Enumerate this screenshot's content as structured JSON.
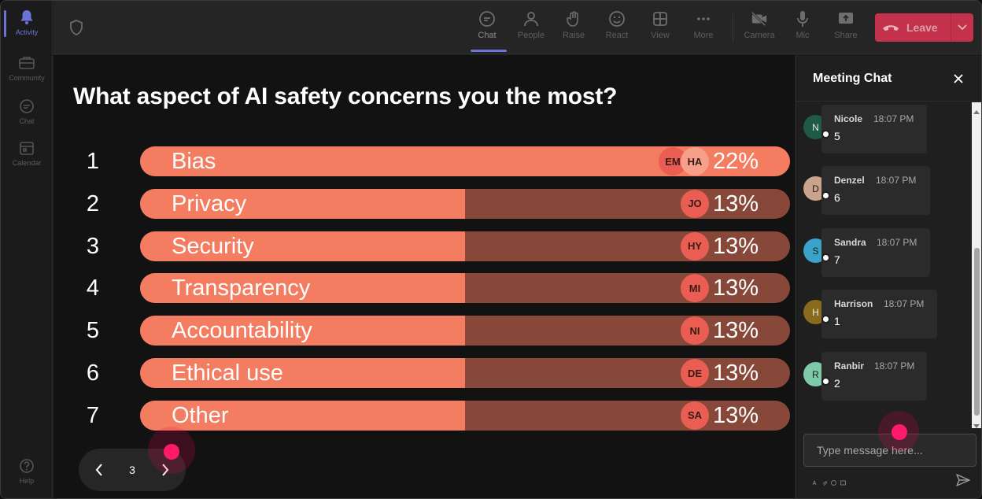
{
  "rail": {
    "items": [
      {
        "label": "Activity",
        "icon": "bell-icon",
        "active": true
      },
      {
        "label": "Community",
        "icon": "community-icon"
      },
      {
        "label": "Chat",
        "icon": "chat-icon"
      },
      {
        "label": "Calendar",
        "icon": "calendar-icon"
      }
    ],
    "help": {
      "label": "Help",
      "icon": "help-icon"
    }
  },
  "toolbar": {
    "buttons": [
      {
        "label": "Chat",
        "icon": "chat-icon",
        "active": true
      },
      {
        "label": "People",
        "icon": "people-icon"
      },
      {
        "label": "Raise",
        "icon": "hand-icon"
      },
      {
        "label": "React",
        "icon": "smiley-icon"
      },
      {
        "label": "View",
        "icon": "grid-icon"
      },
      {
        "label": "More",
        "icon": "more-icon"
      },
      {
        "label": "Camera",
        "icon": "camera-off-icon"
      },
      {
        "label": "Mic",
        "icon": "mic-icon"
      },
      {
        "label": "Share",
        "icon": "share-icon"
      }
    ],
    "leave_label": "Leave"
  },
  "poll": {
    "question": "What aspect of AI safety concerns you the most?",
    "options": [
      {
        "num": "1",
        "label": "Bias",
        "percent": "22%",
        "fill": 1.0,
        "avatars": [
          "EM",
          "HA"
        ]
      },
      {
        "num": "2",
        "label": "Privacy",
        "percent": "13%",
        "fill": 0.5,
        "avatars": [
          "JO"
        ]
      },
      {
        "num": "3",
        "label": "Security",
        "percent": "13%",
        "fill": 0.5,
        "avatars": [
          "HY"
        ]
      },
      {
        "num": "4",
        "label": "Transparency",
        "percent": "13%",
        "fill": 0.5,
        "avatars": [
          "MI"
        ]
      },
      {
        "num": "5",
        "label": "Accountability",
        "percent": "13%",
        "fill": 0.5,
        "avatars": [
          "NI"
        ]
      },
      {
        "num": "6",
        "label": "Ethical use",
        "percent": "13%",
        "fill": 0.5,
        "avatars": [
          "DE"
        ]
      },
      {
        "num": "7",
        "label": "Other",
        "percent": "13%",
        "fill": 0.5,
        "avatars": [
          "SA"
        ]
      }
    ],
    "page": "3"
  },
  "colors": {
    "bar_fill": "#f47c60",
    "bar_track": "#87483a",
    "leave": "#c4314b",
    "accent": "#6b73d6",
    "cursor": "#ff1a6a"
  },
  "chat": {
    "title": "Meeting Chat",
    "messages": [
      {
        "initial": "N",
        "name": "Nicole",
        "time": "18:07 PM",
        "text": "5",
        "color": "#1e5a47"
      },
      {
        "initial": "D",
        "name": "Denzel",
        "time": "18:07 PM",
        "text": "6",
        "color": "#c9a38c"
      },
      {
        "initial": "S",
        "name": "Sandra",
        "time": "18:07 PM",
        "text": "7",
        "color": "#3aa3c9"
      },
      {
        "initial": "H",
        "name": "Harrison",
        "time": "18:07 PM",
        "text": "1",
        "color": "#8a6a1c"
      },
      {
        "initial": "R",
        "name": "Ranbir",
        "time": "18:07 PM",
        "text": "2",
        "color": "#7ec9a8"
      }
    ],
    "input_placeholder": "Type message here..."
  }
}
